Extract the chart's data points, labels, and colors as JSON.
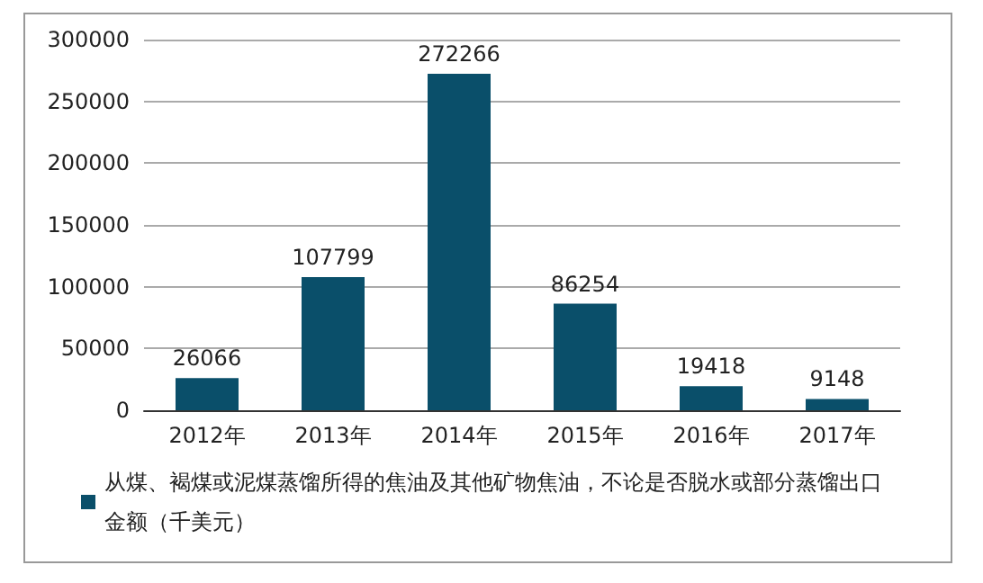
{
  "chart_data": {
    "type": "bar",
    "categories": [
      "2012年",
      "2013年",
      "2014年",
      "2015年",
      "2016年",
      "2017年"
    ],
    "series": [
      {
        "name": "从煤、褐煤或泥煤蒸馏所得的焦油及其他矿物焦油，不论是否脱水或部分蒸馏出口金额（千美元）",
        "color": "#0a4f6a",
        "values": [
          26066,
          107799,
          272266,
          86254,
          19418,
          9148
        ]
      }
    ],
    "ylim": [
      0,
      300000
    ],
    "yticks": [
      0,
      50000,
      100000,
      150000,
      200000,
      250000,
      300000
    ],
    "grid": "y",
    "legend": "bottom",
    "data_labels": true
  }
}
